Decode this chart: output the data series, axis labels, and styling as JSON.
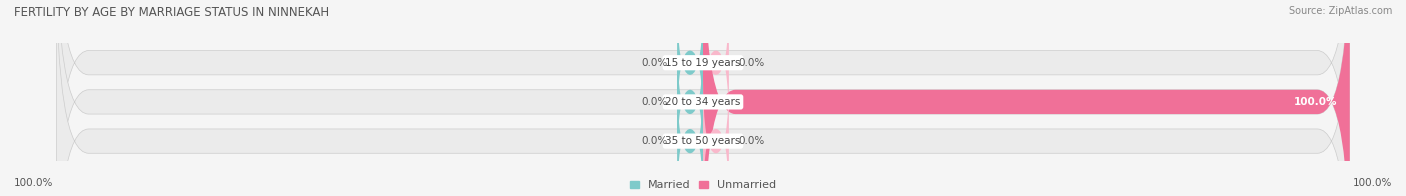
{
  "title": "FERTILITY BY AGE BY MARRIAGE STATUS IN NINNEKAH",
  "source": "Source: ZipAtlas.com",
  "categories": [
    "15 to 19 years",
    "20 to 34 years",
    "35 to 50 years"
  ],
  "married_values": [
    0.0,
    0.0,
    0.0
  ],
  "unmarried_values": [
    0.0,
    100.0,
    0.0
  ],
  "married_color": "#7ecaca",
  "unmarried_color": "#f07098",
  "unmarried_color_light": "#f9b8cb",
  "bar_bg_color": "#ebebeb",
  "bar_height": 0.62,
  "title_fontsize": 8.5,
  "source_fontsize": 7,
  "label_fontsize": 7.5,
  "category_fontsize": 7.5,
  "legend_fontsize": 8,
  "xlim": [
    -100,
    100
  ],
  "left_label": "100.0%",
  "right_label": "100.0%",
  "background_color": "#f5f5f5"
}
